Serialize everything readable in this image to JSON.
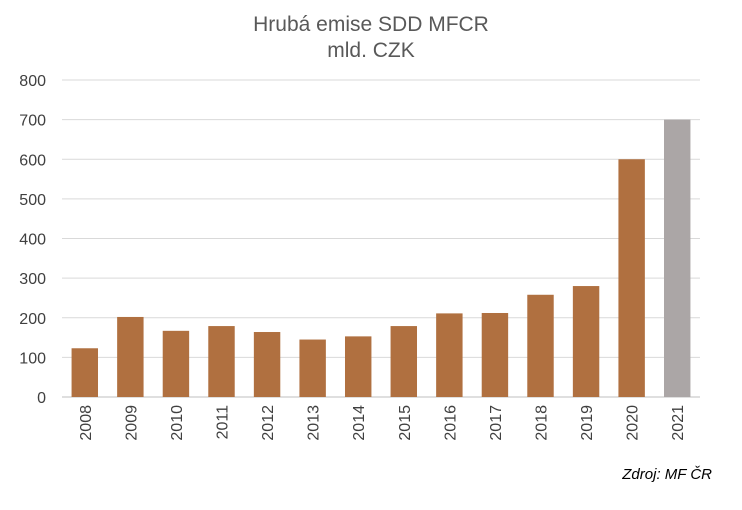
{
  "chart_data": {
    "type": "bar",
    "title": "Hrubá emise SDD MFCR",
    "subtitle": "mld. CZK",
    "categories": [
      "2008",
      "2009",
      "2010",
      "2011",
      "2012",
      "2013",
      "2014",
      "2015",
      "2016",
      "2017",
      "2018",
      "2019",
      "2020",
      "2021"
    ],
    "values": [
      123,
      202,
      167,
      179,
      164,
      145,
      153,
      179,
      211,
      212,
      258,
      280,
      600,
      700
    ],
    "bar_colors": [
      "#b07040",
      "#b07040",
      "#b07040",
      "#b07040",
      "#b07040",
      "#b07040",
      "#b07040",
      "#b07040",
      "#b07040",
      "#b07040",
      "#b07040",
      "#b07040",
      "#b07040",
      "#aba6a6"
    ],
    "ylim": [
      0,
      800
    ],
    "yticks": [
      0,
      100,
      200,
      300,
      400,
      500,
      600,
      700,
      800
    ],
    "grid": true,
    "xlabel": "",
    "ylabel": ""
  },
  "source_note": "Zdroj: MF ČR"
}
